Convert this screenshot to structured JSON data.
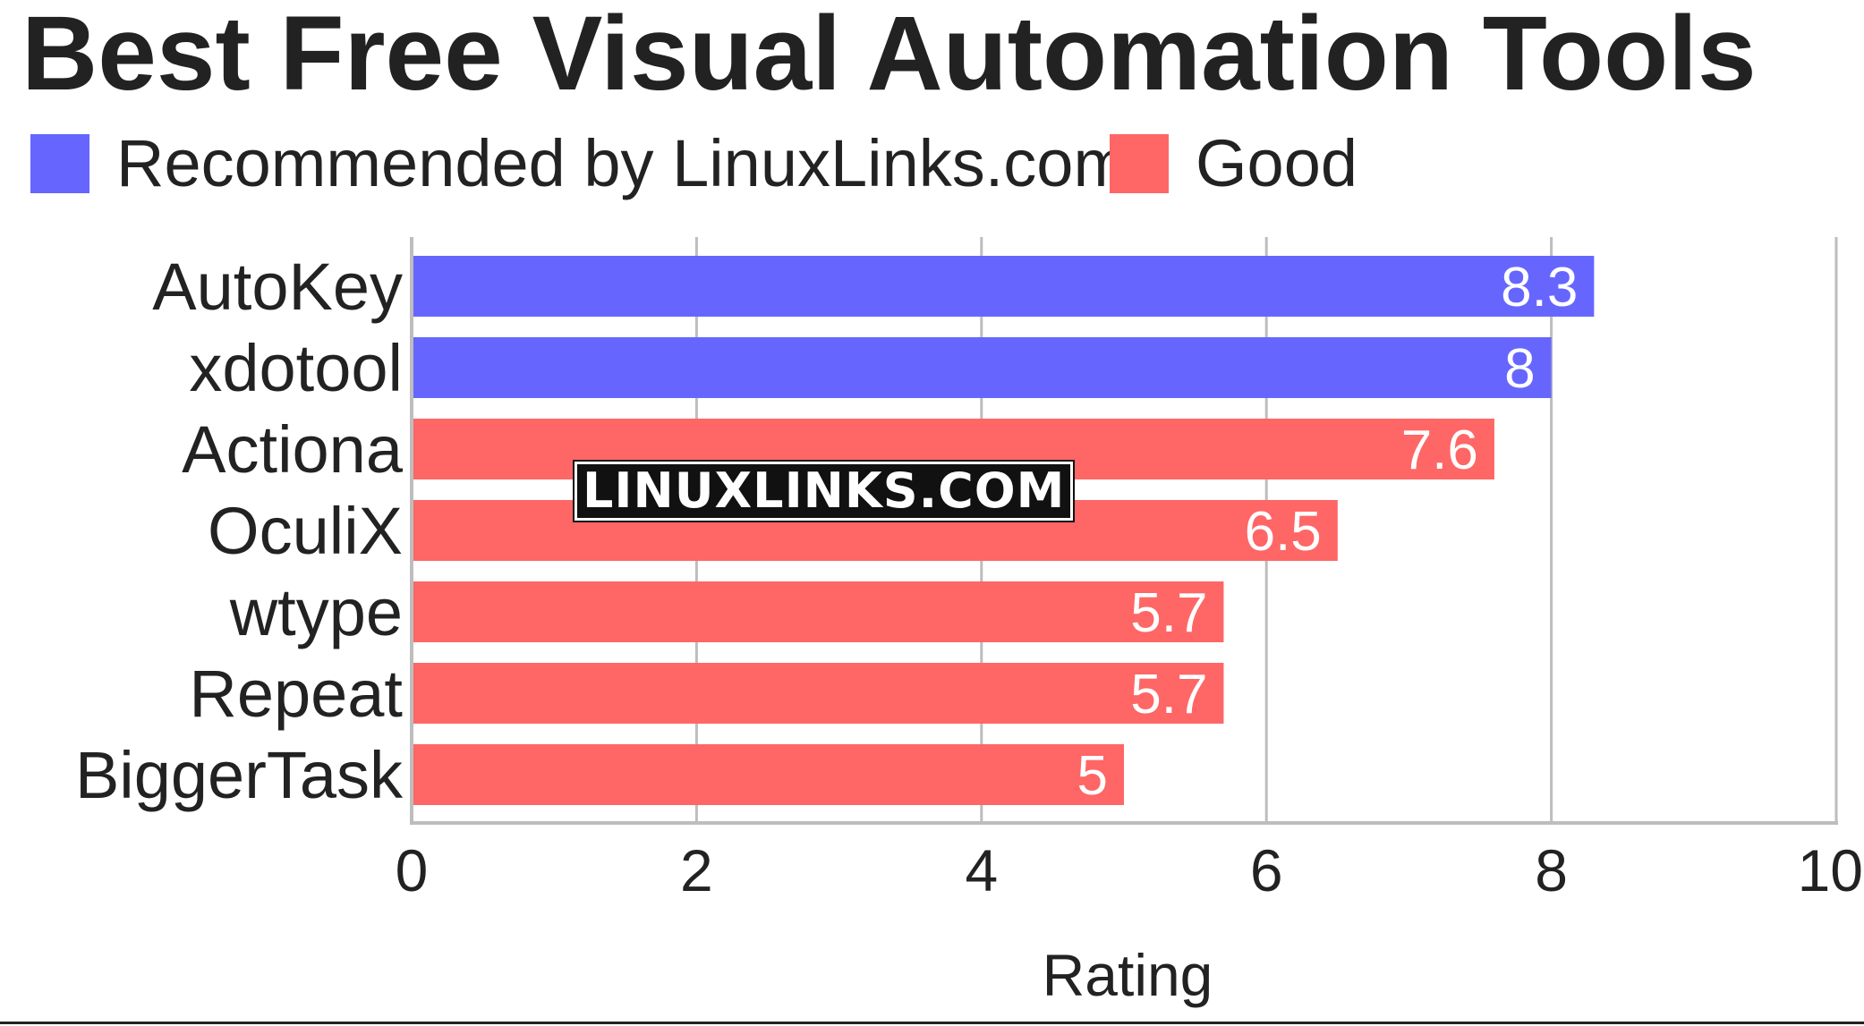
{
  "page": {
    "background": "#ffffff",
    "watermark": "LINUXLINKS.COM"
  },
  "chart_data": {
    "type": "bar",
    "orientation": "horizontal",
    "title": "Best Free Visual Automation Tools",
    "xlabel": "Rating",
    "ylabel": "",
    "xlim": [
      0,
      10
    ],
    "xticks": [
      0,
      2,
      4,
      6,
      8,
      10
    ],
    "grid": true,
    "legend_placement": "top-left",
    "legend": [
      {
        "label": "Recommended by LinuxLinks.com",
        "color": "#6666ff"
      },
      {
        "label": "Good",
        "color": "#ff6666"
      }
    ],
    "categories": [
      "AutoKey",
      "xdotool",
      "Actiona",
      "OculiX",
      "wtype",
      "Repeat",
      "BiggerTask"
    ],
    "values": [
      8.3,
      8,
      7.6,
      6.5,
      5.7,
      5.7,
      5
    ],
    "value_labels": [
      "8.3",
      "8",
      "7.6",
      "6.5",
      "5.7",
      "5.7",
      "5"
    ],
    "groups": [
      "Recommended by LinuxLinks.com",
      "Recommended by LinuxLinks.com",
      "Good",
      "Good",
      "Good",
      "Good",
      "Good"
    ]
  }
}
